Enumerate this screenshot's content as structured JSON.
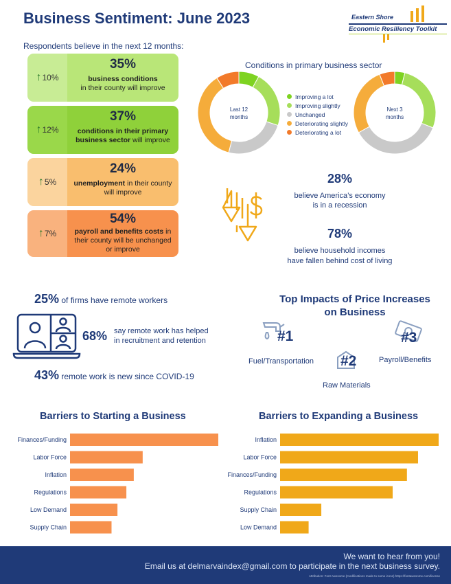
{
  "header": {
    "title": "Business Sentiment: June 2023",
    "logo_line1": "Eastern Shore",
    "logo_line2": "Economic Resiliency Toolkit"
  },
  "intro": "Respondents believe in the next 12 months:",
  "cards": [
    {
      "change": "10%",
      "pct": "35%",
      "bold": "business conditions",
      "rest": "in their county will improve",
      "side_color": "#c8ec95",
      "body_color": "#b9e678"
    },
    {
      "change": "12%",
      "pct": "37%",
      "bold": "conditions in their primary business sector",
      "rest": "will improve",
      "side_color": "#9ad84a",
      "body_color": "#8fd13a"
    },
    {
      "change": "5%",
      "pct": "24%",
      "bold": "unemployment",
      "rest": "in their county will improve",
      "side_color": "#fbd49e",
      "body_color": "#f9be6e"
    },
    {
      "change": "7%",
      "pct": "54%",
      "bold": "payroll and benefits costs",
      "rest": "in their county will be unchanged or improve",
      "side_color": "#f9b27e",
      "body_color": "#f7914d"
    }
  ],
  "donuts": {
    "title": "Conditions in primary business sector",
    "left_label_1": "Last 12",
    "left_label_2": "months",
    "right_label_1": "Next 3",
    "right_label_2": "months",
    "legend": [
      {
        "label": "Improving a lot",
        "color": "#7ed321"
      },
      {
        "label": "Improving slightly",
        "color": "#a6de5a"
      },
      {
        "label": "Unchanged",
        "color": "#c9c9c9"
      },
      {
        "label": "Deteriorating slightly",
        "color": "#f5ac3b"
      },
      {
        "label": "Deteriorating a lot",
        "color": "#f27a2a"
      }
    ],
    "left_shares": [
      0.08,
      0.22,
      0.24,
      0.37,
      0.09
    ],
    "right_shares": [
      0.04,
      0.27,
      0.36,
      0.27,
      0.06
    ]
  },
  "economy": {
    "recession_pct": "28%",
    "recession_line1": "believe America’s economy",
    "recession_line2": "is in a recession",
    "income_pct": "78%",
    "income_line1": "believe household incomes",
    "income_line2": "have fallen behind cost of living"
  },
  "remote": {
    "firms_pct": "25%",
    "firms_text": "of firms have remote workers",
    "helped_pct": "68%",
    "helped_line1": "say remote work has helped",
    "helped_line2": "in recruitment and retention",
    "new_pct": "43%",
    "new_text": "remote work is new since COVID-19"
  },
  "impacts": {
    "title_line1": "Top Impacts of Price Increases",
    "title_line2": "on Business",
    "items": [
      {
        "rank": "#1",
        "label": "Fuel/Transportation"
      },
      {
        "rank": "#2",
        "label": "Raw Materials"
      },
      {
        "rank": "#3",
        "label": "Payroll/Benefits"
      }
    ]
  },
  "chart_data": [
    {
      "type": "bar",
      "title": "Barriers to Starting a Business",
      "categories": [
        "Finances/Funding",
        "Labor Force",
        "Inflation",
        "Regulations",
        "Low Demand",
        "Supply Chain"
      ],
      "values": [
        100,
        49,
        43,
        38,
        32,
        28
      ],
      "color": "#f7914d"
    },
    {
      "type": "bar",
      "title": "Barriers to Expanding a Business",
      "categories": [
        "Inflation",
        "Labor Force",
        "Finances/Funding",
        "Regulations",
        "Supply Chain",
        "Low Demand"
      ],
      "values": [
        100,
        87,
        80,
        71,
        26,
        18
      ],
      "color": "#f0a819"
    }
  ],
  "footer": {
    "line1": "We want to hear from you!",
    "line2": "Email us at delmarvaindex@gmail.com to participate in the next business survey.",
    "attribution": "Attribution: Font Awesome (modifications made to some icons) https://fontawesome.com/license"
  }
}
